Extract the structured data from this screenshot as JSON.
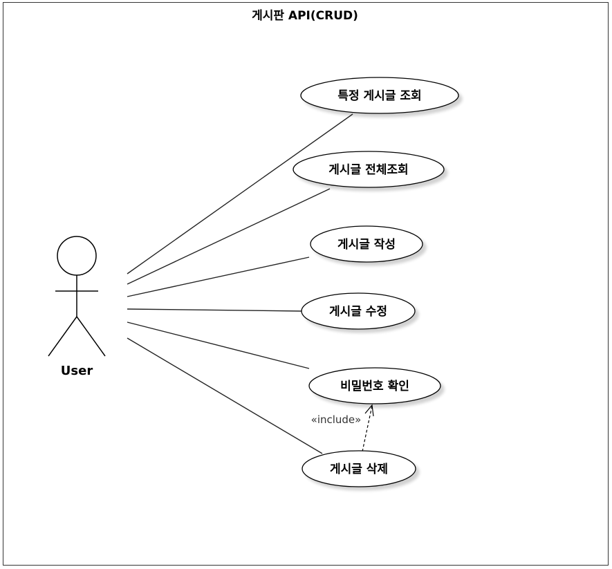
{
  "diagram": {
    "type": "use-case",
    "title": "게시판 API(CRUD)",
    "actor": {
      "name": "User"
    },
    "use_cases": [
      {
        "id": "uc1",
        "label": "특정 게시글 조회"
      },
      {
        "id": "uc2",
        "label": "게시글 전체조회"
      },
      {
        "id": "uc3",
        "label": "게시글 작성"
      },
      {
        "id": "uc4",
        "label": "게시글 수정"
      },
      {
        "id": "uc5",
        "label": "비밀번호 확인"
      },
      {
        "id": "uc6",
        "label": "게시글 삭제"
      }
    ],
    "include_relation": {
      "from": "게시글 삭제",
      "to": "비밀번호 확인",
      "label": "«include»"
    }
  }
}
